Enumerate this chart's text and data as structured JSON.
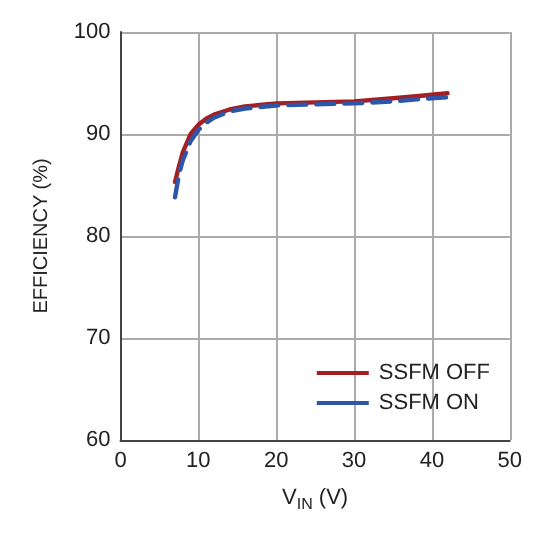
{
  "chart_data": {
    "type": "line",
    "xlabel": "V$_{IN}$ (V)",
    "ylabel": "EFFICIENCY (%)",
    "xlim": [
      0,
      50
    ],
    "xticks": [
      0,
      10,
      20,
      30,
      40,
      50
    ],
    "ylim": [
      60,
      100
    ],
    "yticks": [
      60,
      70,
      80,
      90,
      100
    ],
    "grid": true,
    "legend": "bottom right",
    "marker": "none",
    "series": [
      {
        "name": "SSFM OFF",
        "color": "#a31f24",
        "line_style": "solid",
        "x": [
          7,
          7.5,
          8,
          9,
          10,
          11,
          12,
          14,
          16,
          20,
          25,
          30,
          35,
          38,
          42
        ],
        "values": [
          85.3,
          86.8,
          88.2,
          90,
          90.9,
          91.5,
          91.9,
          92.4,
          92.7,
          93,
          93.1,
          93.2,
          93.5,
          93.7,
          94
        ]
      },
      {
        "name": "SSFM ON",
        "color": "#2e56a8",
        "line_style": "dashed",
        "x": [
          7,
          7.5,
          8,
          9,
          10,
          11,
          12,
          14,
          16,
          20,
          25,
          30,
          35,
          38,
          42
        ],
        "values": [
          83.8,
          86,
          87.4,
          89.3,
          90.4,
          91.1,
          91.6,
          92.2,
          92.5,
          92.8,
          92.9,
          93,
          93.2,
          93.4,
          93.6
        ]
      }
    ]
  }
}
